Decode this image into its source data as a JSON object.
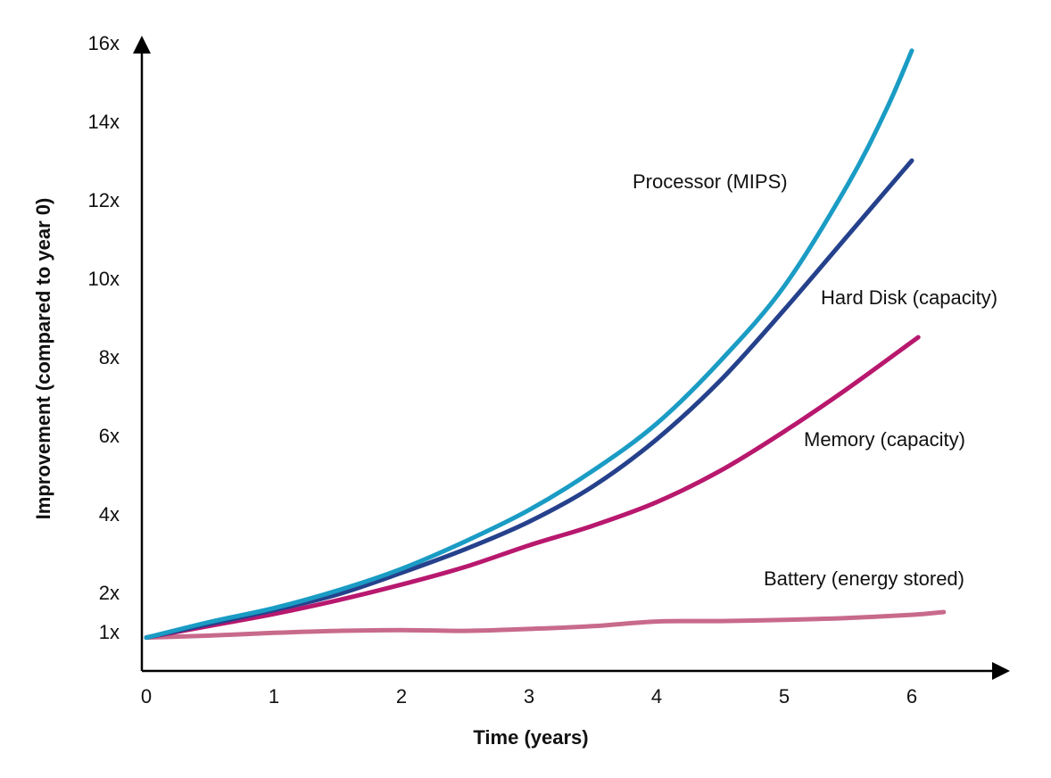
{
  "chart_data": {
    "type": "line",
    "title": "",
    "xlabel": "Time (years)",
    "ylabel": "Improvement (compared to year 0)",
    "xlim": [
      0,
      7
    ],
    "ylim": [
      0,
      16
    ],
    "x_ticks": [
      {
        "value": 0,
        "label": "0"
      },
      {
        "value": 1,
        "label": "1"
      },
      {
        "value": 2,
        "label": "2"
      },
      {
        "value": 3,
        "label": "3"
      },
      {
        "value": 4,
        "label": "4"
      },
      {
        "value": 5,
        "label": "5"
      },
      {
        "value": 6,
        "label": "6"
      }
    ],
    "y_ticks": [
      {
        "value": 1,
        "label": "1x"
      },
      {
        "value": 2,
        "label": "2x"
      },
      {
        "value": 4,
        "label": "4x"
      },
      {
        "value": 6,
        "label": "6x"
      },
      {
        "value": 8,
        "label": "8x"
      },
      {
        "value": 10,
        "label": "10x"
      },
      {
        "value": 12,
        "label": "12x"
      },
      {
        "value": 14,
        "label": "14x"
      },
      {
        "value": 16,
        "label": "16x"
      }
    ],
    "grid": false,
    "legend": "inline labels next to lines",
    "series": [
      {
        "name": "Processor (MIPS)",
        "color": "#1a9cc4",
        "x": [
          0,
          0.5,
          1,
          1.5,
          2,
          2.5,
          3,
          3.5,
          4,
          4.5,
          5,
          5.5,
          5.8,
          6.0
        ],
        "y": [
          0.85,
          1.25,
          1.6,
          2.05,
          2.6,
          3.3,
          4.1,
          5.1,
          6.3,
          7.9,
          9.8,
          12.4,
          14.3,
          15.8
        ]
      },
      {
        "name": "Hard Disk (capacity)",
        "color": "#25418c",
        "x": [
          0,
          0.5,
          1,
          1.5,
          2,
          2.5,
          3,
          3.5,
          4,
          4.5,
          5,
          5.5,
          6.0
        ],
        "y": [
          0.85,
          1.2,
          1.55,
          1.95,
          2.5,
          3.1,
          3.8,
          4.7,
          5.9,
          7.4,
          9.2,
          11.1,
          13.0
        ]
      },
      {
        "name": "Memory (capacity)",
        "color": "#b8186e",
        "x": [
          0,
          0.5,
          1,
          1.5,
          2,
          2.5,
          3,
          3.5,
          4,
          4.5,
          5,
          5.5,
          6.05
        ],
        "y": [
          0.85,
          1.15,
          1.45,
          1.8,
          2.2,
          2.65,
          3.2,
          3.7,
          4.3,
          5.1,
          6.1,
          7.2,
          8.5
        ]
      },
      {
        "name": "Battery (energy stored)",
        "color": "#c86a8c",
        "x": [
          0,
          0.5,
          1,
          1.5,
          2,
          2.5,
          3,
          3.5,
          4,
          4.5,
          5,
          5.5,
          6.0,
          6.25
        ],
        "y": [
          0.85,
          0.9,
          0.97,
          1.02,
          1.04,
          1.02,
          1.07,
          1.14,
          1.26,
          1.27,
          1.3,
          1.35,
          1.43,
          1.5
        ]
      }
    ]
  }
}
